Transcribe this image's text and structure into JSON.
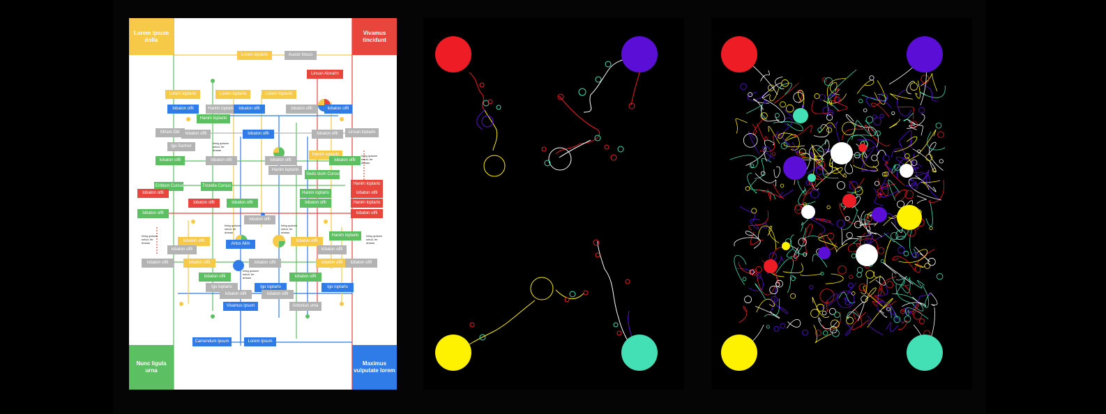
{
  "colors": {
    "yellow": "#f7c948",
    "red": "#e8453c",
    "green": "#5cbf61",
    "blue": "#2f7be8",
    "gray": "#b3b3b3",
    "purple": "#5b0fd6",
    "teal": "#43e0b6",
    "brightred": "#ee1c25",
    "brightyellow": "#fff200"
  },
  "corners": {
    "top_left": "Lorem ipsum dolla",
    "top_right": "Vivamus tincidunt",
    "bottom_left": "Nunc ligula urna",
    "bottom_right": "Maximus vulputate lorem"
  },
  "boxes": [
    {
      "id": "b1",
      "text": "Lorem loptarlo",
      "color": "yellow"
    },
    {
      "id": "b2",
      "text": "Auctor tincus",
      "color": "gray"
    },
    {
      "id": "b3",
      "text": "Linsan Alorarin",
      "color": "red"
    },
    {
      "id": "b4",
      "text": "Lorem loptarlo",
      "color": "yellow"
    },
    {
      "id": "b5",
      "text": "Lorem loptarlo",
      "color": "yellow"
    },
    {
      "id": "b6",
      "text": "Lorem loptarlo",
      "color": "yellow"
    },
    {
      "id": "b7",
      "text": "lobaton olfli",
      "color": "blue"
    },
    {
      "id": "b8",
      "text": "Hanim loptarlo",
      "color": "gray"
    },
    {
      "id": "b9",
      "text": "lobaton olfli",
      "color": "blue"
    },
    {
      "id": "b10",
      "text": "lobaton olfli",
      "color": "gray"
    },
    {
      "id": "b11",
      "text": "lobaton olfli",
      "color": "blue"
    },
    {
      "id": "b12",
      "text": "Hanim loptarlo",
      "color": "green"
    },
    {
      "id": "b13",
      "text": "Mrlam Dbr",
      "color": "gray"
    },
    {
      "id": "b14",
      "text": "lobaton olfli",
      "color": "gray"
    },
    {
      "id": "b15",
      "text": "lobaton olfli",
      "color": "blue"
    },
    {
      "id": "b16",
      "text": "lobaton olfli",
      "color": "gray"
    },
    {
      "id": "b17",
      "text": "Linsan loptarlo",
      "color": "gray"
    },
    {
      "id": "b18",
      "text": "Igo Sartner",
      "color": "gray"
    },
    {
      "id": "b19",
      "text": "Hanim loptarlo",
      "color": "yellow"
    },
    {
      "id": "b20",
      "text": "lobaton olfli",
      "color": "green"
    },
    {
      "id": "b21",
      "text": "lobaton olfli",
      "color": "gray"
    },
    {
      "id": "b22",
      "text": "lobaton olfli",
      "color": "gray"
    },
    {
      "id": "b23",
      "text": "lobaton olfli",
      "color": "green"
    },
    {
      "id": "b24",
      "text": "Hanim loptarlo",
      "color": "gray"
    },
    {
      "id": "b25",
      "text": "Sedu stum Cursus",
      "color": "green"
    },
    {
      "id": "b26",
      "text": "Hanim loptarlo",
      "color": "red"
    },
    {
      "id": "b27",
      "text": "Entitum Cursus",
      "color": "green"
    },
    {
      "id": "b28",
      "text": "Tristella Cursus",
      "color": "green"
    },
    {
      "id": "b29",
      "text": "lobaton olfli",
      "color": "red"
    },
    {
      "id": "b30",
      "text": "Hanim loptarlo",
      "color": "green"
    },
    {
      "id": "b31",
      "text": "lobaton olfli",
      "color": "red"
    },
    {
      "id": "b32",
      "text": "lobaton olfli",
      "color": "green"
    },
    {
      "id": "b33",
      "text": "lobaton olfli",
      "color": "green"
    },
    {
      "id": "b34",
      "text": "lobaton olfli",
      "color": "green"
    },
    {
      "id": "b35",
      "text": "Hanim loptarlo",
      "color": "red"
    },
    {
      "id": "b36",
      "text": "lobaton olfli",
      "color": "red"
    },
    {
      "id": "b37",
      "text": "lobaton olfli",
      "color": "red"
    },
    {
      "id": "b38",
      "text": "lobaton olfli",
      "color": "gray"
    },
    {
      "id": "b39",
      "text": "Hanim loptarlo",
      "color": "green"
    },
    {
      "id": "b40",
      "text": "lobaton olfli",
      "color": "yellow"
    },
    {
      "id": "b41",
      "text": "Artos Alim",
      "color": "blue"
    },
    {
      "id": "b42",
      "text": "lobaton olfli",
      "color": "gray"
    },
    {
      "id": "b43",
      "text": "lobaton olfli",
      "color": "yellow"
    },
    {
      "id": "b44",
      "text": "lobaton olfli",
      "color": "gray"
    },
    {
      "id": "b45",
      "text": "lobaton olfli",
      "color": "gray"
    },
    {
      "id": "b46",
      "text": "lobaton olfli",
      "color": "yellow"
    },
    {
      "id": "b47",
      "text": "lobaton olfli",
      "color": "gray"
    },
    {
      "id": "b48",
      "text": "lobaton olfli",
      "color": "yellow"
    },
    {
      "id": "b49",
      "text": "lobaton olfli",
      "color": "gray"
    },
    {
      "id": "b50",
      "text": "lobaton olfli",
      "color": "green"
    },
    {
      "id": "b51",
      "text": "lobaton olfli",
      "color": "green"
    },
    {
      "id": "b52",
      "text": "Igo loptarlo",
      "color": "gray"
    },
    {
      "id": "b53",
      "text": "Igo loptarlo",
      "color": "blue"
    },
    {
      "id": "b54",
      "text": "Igo loptarlo",
      "color": "blue"
    },
    {
      "id": "b55",
      "text": "lobaton olfli",
      "color": "gray"
    },
    {
      "id": "b56",
      "text": "lobaton olfli",
      "color": "gray"
    },
    {
      "id": "b57",
      "text": "Vivamus ipsum",
      "color": "blue"
    },
    {
      "id": "b58",
      "text": "Antonius urna",
      "color": "gray"
    },
    {
      "id": "b59",
      "text": "Camendum Ipsum",
      "color": "blue"
    },
    {
      "id": "b60",
      "text": "Lorem Ipsum",
      "color": "blue"
    }
  ],
  "notes": [
    {
      "id": "n1",
      "text": "Integ quisam sntud, fer drasao"
    },
    {
      "id": "n2",
      "text": "Integ quisam sntud, fer drasao"
    },
    {
      "id": "n3",
      "text": "Integ quisam sntud, fer drasao"
    },
    {
      "id": "n4",
      "text": "Integ quisam sntud, fer drasao"
    },
    {
      "id": "n5",
      "text": "Integ quisam sntud, fer drasao"
    },
    {
      "id": "n6",
      "text": "Integ quisam sntud, fer drasao"
    },
    {
      "id": "n7",
      "text": "Integ quisam sntud, fer drasao"
    }
  ]
}
